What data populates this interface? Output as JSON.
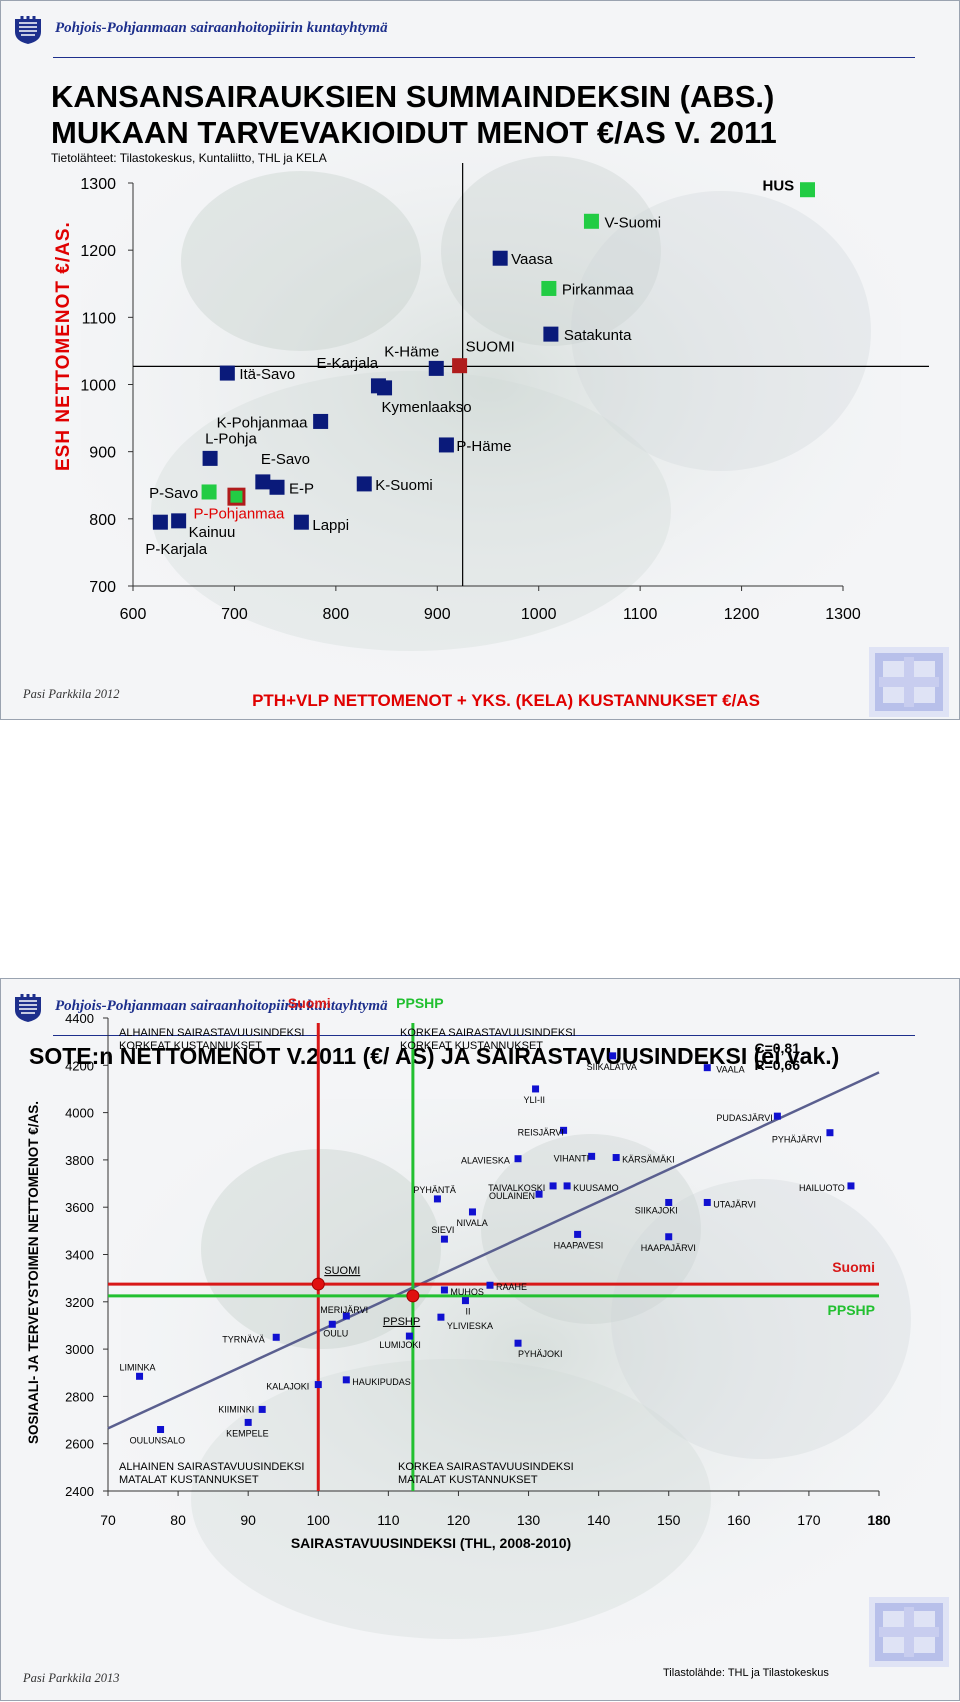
{
  "org_name": "Pohjois-Pohjanmaan sairaanhoitopiirin kuntayhtymä",
  "colors": {
    "navy": "#0a1a7a",
    "green": "#22cc44",
    "red": "#b01c1c",
    "bright_red": "#e00000",
    "green_line": "#22c030",
    "trend": "#5a5f8f"
  },
  "slide1": {
    "title_line1": "KANSANSAIRAUKSIEN SUMMAINDEKSIN (ABS.)",
    "title_line2": "MUKAAN TARVEVAKIOIDUT  MENOT  €/AS V. 2011",
    "source": "Tietolähteet: Tilastokeskus, Kuntaliitto, THL ja KELA",
    "author": "Pasi Parkkila 2012",
    "chart_data": {
      "type": "scatter",
      "xlabel": "PTH+VLP NETTOMENOT + YKS. (KELA) KUSTANNUKSET €/AS",
      "ylabel": "ESH  NETTOMENOT  €/AS.",
      "xlim": [
        600,
        1300
      ],
      "ylim": [
        700,
        1300
      ],
      "x_ticks": [
        "600",
        "700",
        "800",
        "900",
        "1000",
        "1100",
        "1200",
        "1300"
      ],
      "y_ticks": [
        "700",
        "800",
        "900",
        "1000",
        "1100",
        "1200",
        "1300"
      ],
      "reference_lines": {
        "x": 925,
        "y": 1027
      },
      "points": [
        {
          "label": "HUS",
          "x": 1265,
          "y": 1290,
          "color": "green"
        },
        {
          "label": "V-Suomi",
          "x": 1052,
          "y": 1243,
          "color": "green"
        },
        {
          "label": "Vaasa",
          "x": 962,
          "y": 1188,
          "color": "navy"
        },
        {
          "label": "Pirkanmaa",
          "x": 1010,
          "y": 1143,
          "color": "green"
        },
        {
          "label": "Satakunta",
          "x": 1012,
          "y": 1075,
          "color": "navy"
        },
        {
          "label": "SUOMI",
          "x": 922,
          "y": 1028,
          "color": "red"
        },
        {
          "label": "K-Häme",
          "x": 899,
          "y": 1024,
          "color": "navy"
        },
        {
          "label": "E-Karjala",
          "x": 842,
          "y": 998,
          "color": "navy"
        },
        {
          "label": "Kymenlaakso",
          "x": 848,
          "y": 995,
          "color": "navy"
        },
        {
          "label": "Itä-Savo",
          "x": 693,
          "y": 1017,
          "color": "navy"
        },
        {
          "label": "K-Pohjanmaa",
          "x": 785,
          "y": 945,
          "color": "navy"
        },
        {
          "label": "P-Häme",
          "x": 909,
          "y": 910,
          "color": "navy"
        },
        {
          "label": "L-Pohja",
          "x": 676,
          "y": 890,
          "color": "navy"
        },
        {
          "label": "E-Savo",
          "x": 728,
          "y": 855,
          "color": "navy"
        },
        {
          "label": "E-P",
          "x": 742,
          "y": 847,
          "color": "navy"
        },
        {
          "label": "K-Suomi",
          "x": 828,
          "y": 852,
          "color": "navy"
        },
        {
          "label": "P-Savo",
          "x": 675,
          "y": 840,
          "color": "green"
        },
        {
          "label": "P-Pohjanmaa",
          "x": 702,
          "y": 833,
          "color": "red_outline"
        },
        {
          "label": "Kainuu",
          "x": 645,
          "y": 797,
          "color": "navy"
        },
        {
          "label": "P-Karjala",
          "x": 627,
          "y": 795,
          "color": "navy"
        },
        {
          "label": "Lappi",
          "x": 766,
          "y": 795,
          "color": "navy"
        }
      ]
    }
  },
  "slide2": {
    "title": "SOTE:n NETTOMENOT V.2011 (€/ AS) JA SAIRASTAVUUSINDEKSI (ei vak.)",
    "author": "Pasi Parkkila 2013",
    "source": "Tilastolähde: THL ja Tilastokeskus",
    "chart_data": {
      "type": "scatter",
      "xlabel": "SAIRASTAVUUSINDEKSI (THL, 2008-2010)",
      "ylabel": "SOSIAALI- JA TERVEYSTOIMEN NETTOMENOT  €/AS.",
      "xlim": [
        70,
        180
      ],
      "ylim": [
        2400,
        4400
      ],
      "x_ticks": [
        "70",
        "80",
        "90",
        "100",
        "110",
        "120",
        "130",
        "140",
        "150",
        "160",
        "170",
        "180"
      ],
      "y_ticks": [
        "2400",
        "2600",
        "2800",
        "3000",
        "3200",
        "3400",
        "3600",
        "3800",
        "4000",
        "4200",
        "4400"
      ],
      "stats": "C=0,81\nR=0,66",
      "reference_lines": [
        {
          "name": "Suomi",
          "axis": "x",
          "value": 100,
          "color": "red"
        },
        {
          "name": "Suomi",
          "axis": "y",
          "value": 3275,
          "color": "red"
        },
        {
          "name": "PPSHP",
          "axis": "x",
          "value": 113.5,
          "color": "green"
        },
        {
          "name": "PPSHP",
          "axis": "y",
          "value": 3225,
          "color": "green"
        }
      ],
      "trendline": {
        "x": [
          70,
          180
        ],
        "y": [
          2665,
          4170
        ]
      },
      "reference_points": [
        {
          "label": "SUOMI",
          "x": 100,
          "y": 3275
        },
        {
          "label": "PPSHP",
          "x": 113.5,
          "y": 3225
        }
      ],
      "quadrants": [
        {
          "id": "top-left",
          "text": "ALHAINEN SAIRASTAVUUSINDEKSI\nKORKEAT KUSTANNUKSET"
        },
        {
          "id": "top-right",
          "text": "KORKEA SAIRASTAVUUSINDEKSI\nKORKEAT KUSTANNUKSET"
        },
        {
          "id": "bottom-left",
          "text": "ALHAINEN SAIRASTAVUUSINDEKSI\nMATALAT KUSTANNUKSET"
        },
        {
          "id": "bottom-right",
          "text": "KORKEA SAIRASTAVUUSINDEKSI\nMATALAT KUSTANNUKSET"
        }
      ],
      "points": [
        {
          "label": "SIIKALATVA",
          "x": 142,
          "y": 4240
        },
        {
          "label": "VAALA",
          "x": 155.5,
          "y": 4190
        },
        {
          "label": "YLI-II",
          "x": 131,
          "y": 4100
        },
        {
          "label": "PUDASJÄRVI",
          "x": 165.5,
          "y": 3985
        },
        {
          "label": "REISJÄRVI",
          "x": 135,
          "y": 3925
        },
        {
          "label": "PYHÄJÄRVI",
          "x": 173,
          "y": 3915
        },
        {
          "label": "VIHANTI",
          "x": 139,
          "y": 3815
        },
        {
          "label": "KÄRSÄMÄKI",
          "x": 142.5,
          "y": 3810
        },
        {
          "label": "ALAVIESKA",
          "x": 128.5,
          "y": 3805
        },
        {
          "label": "HAILUOTO",
          "x": 176,
          "y": 3690
        },
        {
          "label": "TAIVALKOSKI",
          "x": 133.5,
          "y": 3690
        },
        {
          "label": "KUUSAMO",
          "x": 135.5,
          "y": 3690
        },
        {
          "label": "OULAINEN",
          "x": 131.5,
          "y": 3655
        },
        {
          "label": "PYHÄNTÄ",
          "x": 117,
          "y": 3635
        },
        {
          "label": "SIIKAJOKI",
          "x": 150,
          "y": 3620
        },
        {
          "label": "UTAJÄRVI",
          "x": 155.5,
          "y": 3620
        },
        {
          "label": "NIVALA",
          "x": 122,
          "y": 3580
        },
        {
          "label": "SIEVI",
          "x": 118,
          "y": 3465
        },
        {
          "label": "HAAPAVESI",
          "x": 137,
          "y": 3485
        },
        {
          "label": "HAAPAJÄRVI",
          "x": 150,
          "y": 3475
        },
        {
          "label": "RAAHE",
          "x": 124.5,
          "y": 3270
        },
        {
          "label": "MUHOS",
          "x": 118,
          "y": 3250
        },
        {
          "label": "II",
          "x": 121,
          "y": 3205
        },
        {
          "label": "MERIJÄRVI",
          "x": 104,
          "y": 3140
        },
        {
          "label": "YLIVIESKA",
          "x": 117.5,
          "y": 3135
        },
        {
          "label": "OULU",
          "x": 102,
          "y": 3105
        },
        {
          "label": "TYRNÄVÄ",
          "x": 94,
          "y": 3050
        },
        {
          "label": "LUMIJOKI",
          "x": 113,
          "y": 3055
        },
        {
          "label": "PYHÄJOKI",
          "x": 128.5,
          "y": 3025
        },
        {
          "label": "LIMINKA",
          "x": 74.5,
          "y": 2885
        },
        {
          "label": "HAUKIPUDAS",
          "x": 104,
          "y": 2870
        },
        {
          "label": "KALAJOKI",
          "x": 100,
          "y": 2850
        },
        {
          "label": "KIIMINKI",
          "x": 92,
          "y": 2745
        },
        {
          "label": "KEMPELE",
          "x": 90,
          "y": 2690
        },
        {
          "label": "OULUNSALO",
          "x": 77.5,
          "y": 2660
        }
      ]
    }
  }
}
